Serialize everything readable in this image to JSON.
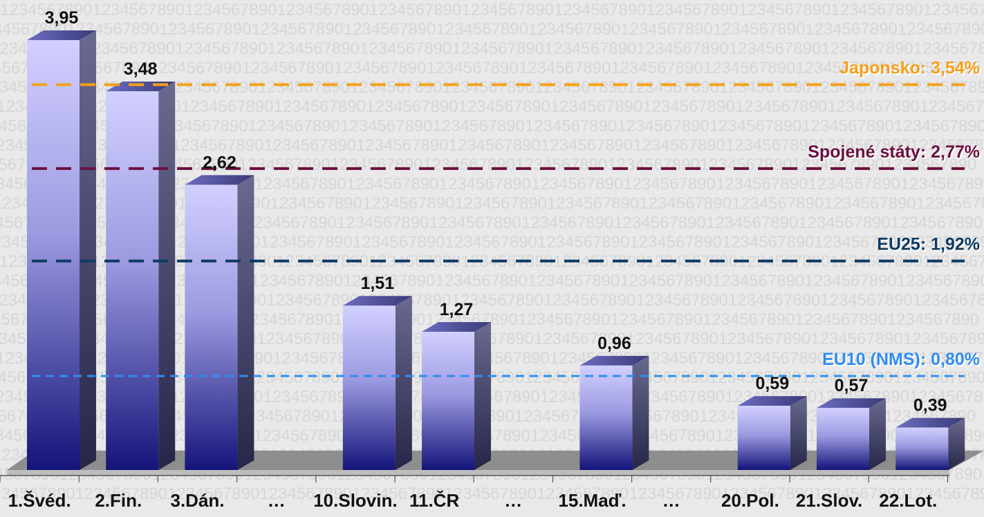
{
  "chart_data": {
    "type": "bar",
    "title": "",
    "xlabel": "",
    "ylabel": "",
    "ylim": [
      0,
      4.2
    ],
    "grid": false,
    "categories": [
      "1.Švéd.",
      "2.Fin.",
      "3.Dán.",
      "…",
      "10.Slovin.",
      "11.ČR",
      "…",
      "15.Maď.",
      "…",
      "20.Pol.",
      "21.Slov.",
      "22.Lot."
    ],
    "values": [
      3.95,
      3.48,
      2.62,
      null,
      1.51,
      1.27,
      null,
      0.96,
      null,
      0.59,
      0.57,
      0.39
    ],
    "value_labels": [
      "3,95",
      "3,48",
      "2,62",
      "",
      "1,51",
      "1,27",
      "",
      "0,96",
      "",
      "0,59",
      "0,57",
      "0,39"
    ],
    "reference_lines": [
      {
        "label": "Japonsko: 3,54%",
        "value": 3.54,
        "color": "#f5a01a"
      },
      {
        "label": "Spojené státy: 2,77%",
        "value": 2.77,
        "color": "#6b1040"
      },
      {
        "label": "EU25: 1,92%",
        "value": 1.92,
        "color": "#0e3a63"
      },
      {
        "label": "EU10 (NMS): 0,80%",
        "value": 0.8,
        "color": "#2f8ef0"
      }
    ],
    "colors": {
      "bar_top": "#d2d0ff",
      "bar_bottom": "#14147a",
      "bar_side": "#3a3a60",
      "floor": "#8a8a8a",
      "background": "#e9e9e9"
    }
  }
}
